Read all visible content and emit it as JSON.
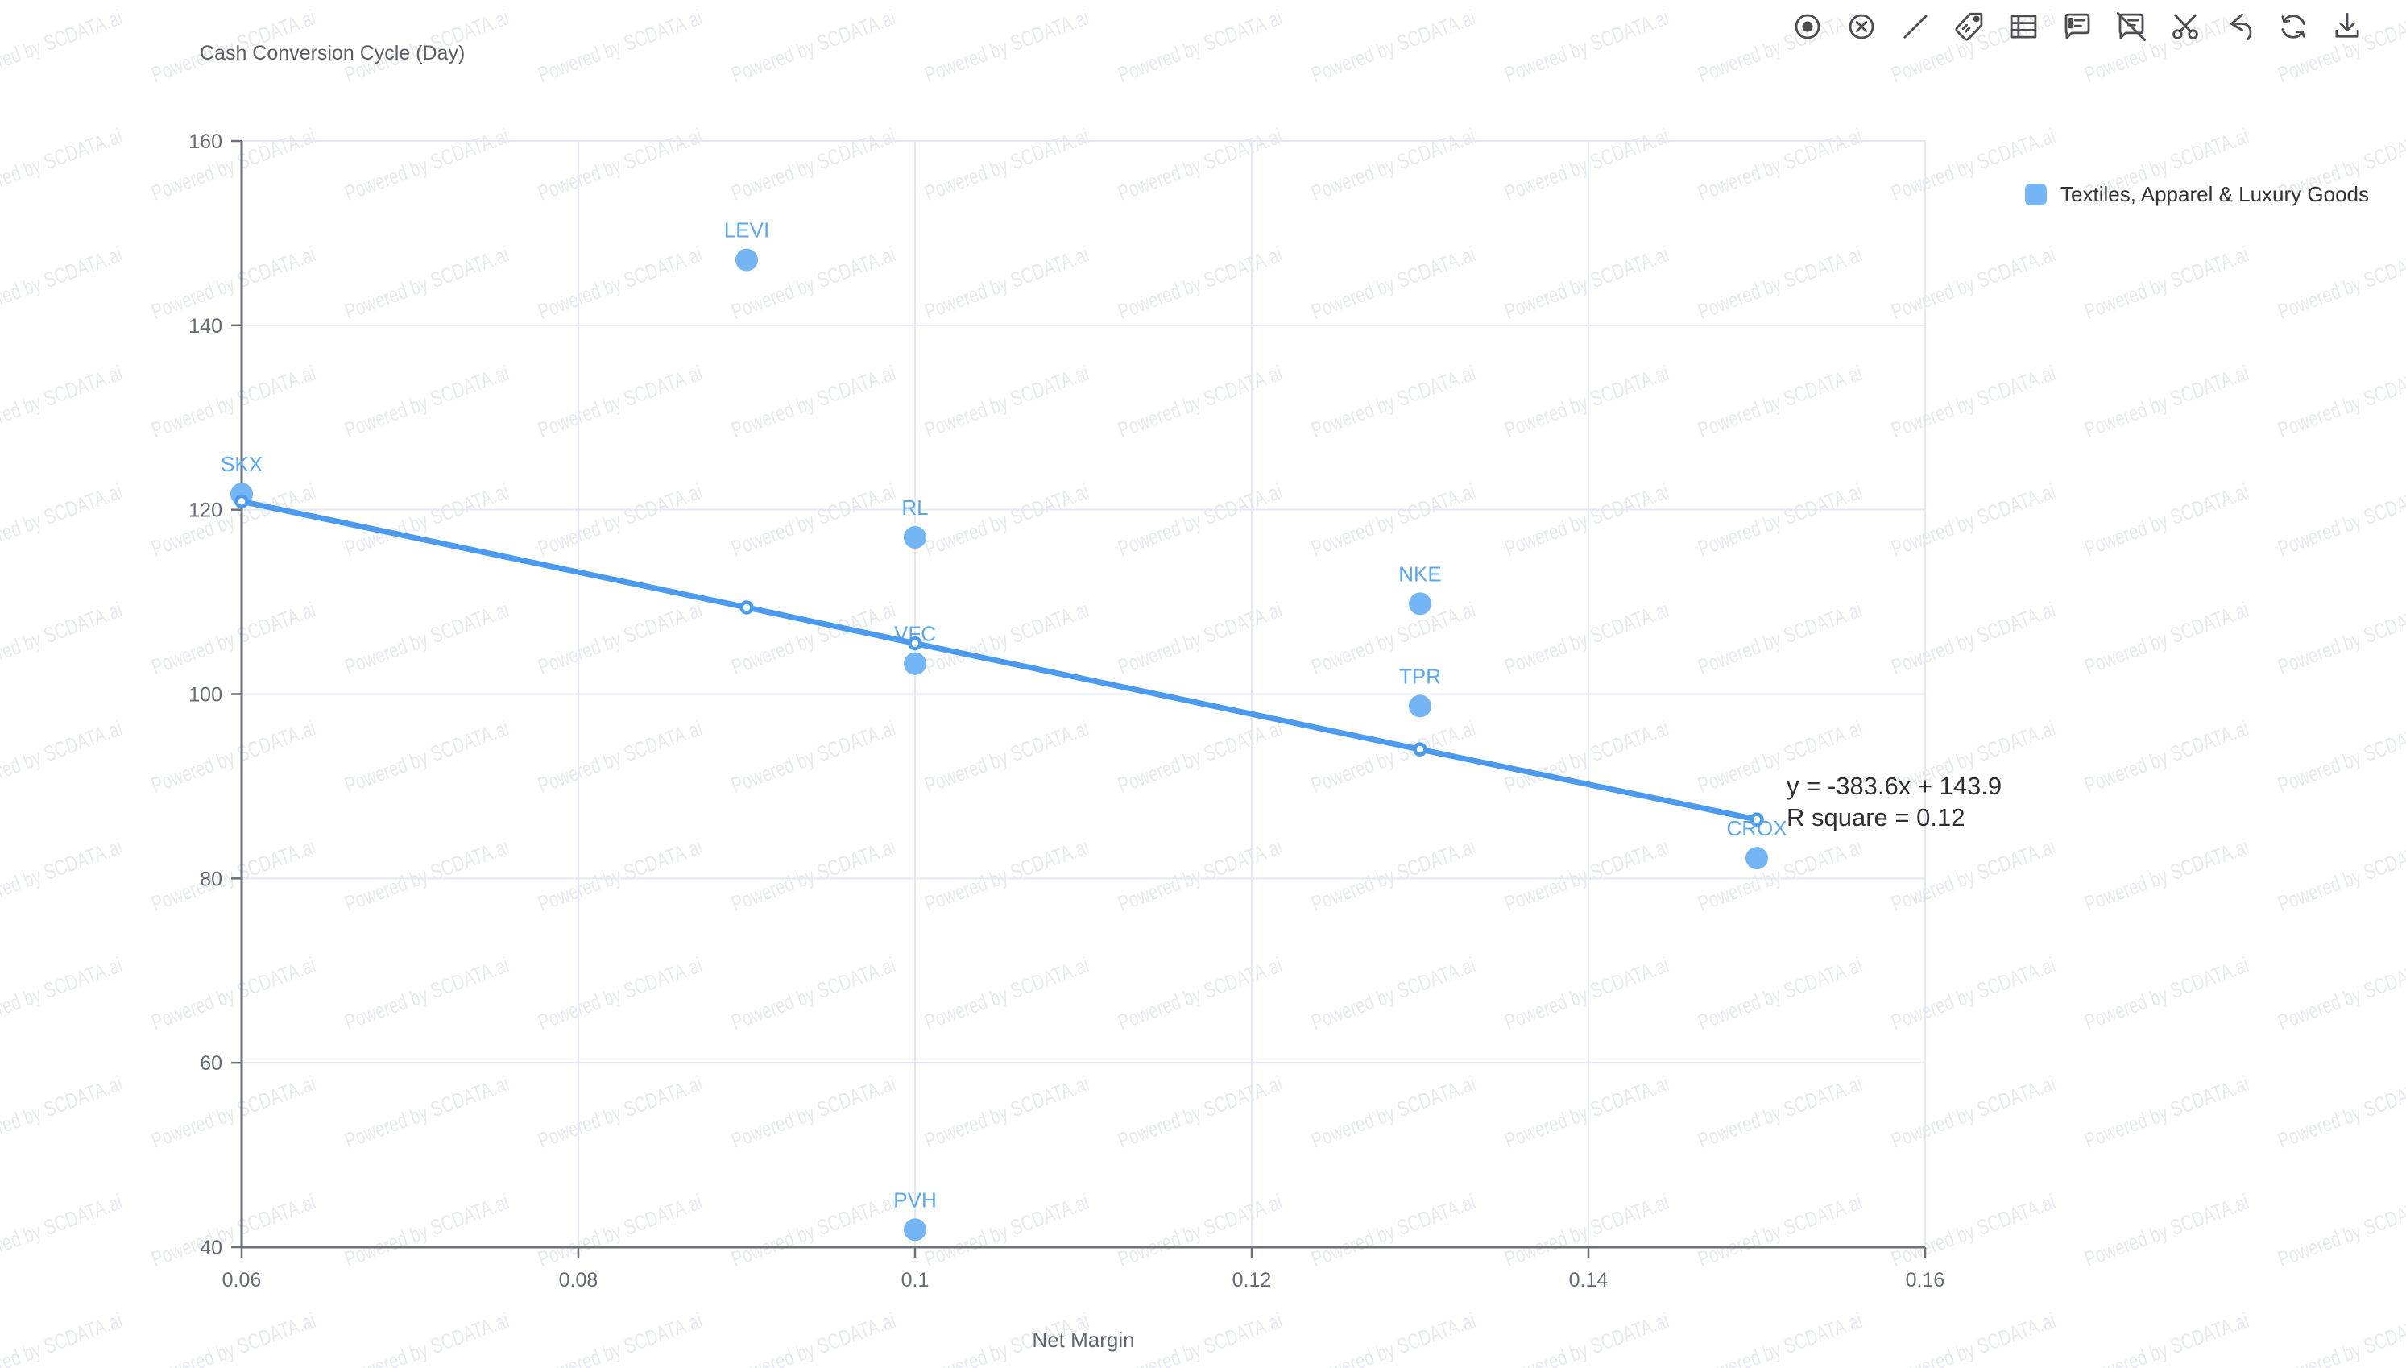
{
  "watermark": {
    "text": "Powered by SCDATA.ai"
  },
  "toolbar": {
    "icons": [
      {
        "name": "dot-circle-icon"
      },
      {
        "name": "circle-x-icon"
      },
      {
        "name": "line-icon"
      },
      {
        "name": "tag-icon"
      },
      {
        "name": "table-icon"
      },
      {
        "name": "annotation-icon"
      },
      {
        "name": "annotation-off-icon"
      },
      {
        "name": "scissors-icon"
      },
      {
        "name": "undo-icon"
      },
      {
        "name": "refresh-icon"
      },
      {
        "name": "download-icon"
      }
    ]
  },
  "legend": {
    "items": [
      {
        "label": "Textiles, Apparel & Luxury Goods",
        "color": "#74b5f6"
      }
    ]
  },
  "chart_data": {
    "type": "scatter",
    "title": "Cash Conversion Cycle (Day)",
    "xlabel": "Net Margin",
    "ylabel": "Cash Conversion Cycle (Day)",
    "xlim": [
      0.06,
      0.16
    ],
    "ylim": [
      40,
      160
    ],
    "x_ticks": [
      0.06,
      0.08,
      0.1,
      0.12,
      0.14,
      0.16
    ],
    "x_tick_labels": [
      "0.06",
      "0.08",
      "0.1",
      "0.12",
      "0.14",
      "0.16"
    ],
    "y_ticks": [
      40,
      60,
      80,
      100,
      120,
      140,
      160
    ],
    "y_tick_labels": [
      "40",
      "60",
      "80",
      "100",
      "120",
      "140",
      "160"
    ],
    "grid": true,
    "legend_position": "top-right",
    "series": [
      {
        "name": "Textiles, Apparel & Luxury Goods",
        "type": "scatter",
        "color": "#74b5f6",
        "label_color": "#58a7f3",
        "points": [
          {
            "label": "SKX",
            "x": 0.06,
            "y": 121.7
          },
          {
            "label": "LEVI",
            "x": 0.09,
            "y": 147.1
          },
          {
            "label": "RL",
            "x": 0.1,
            "y": 117.0
          },
          {
            "label": "VFC",
            "x": 0.1,
            "y": 103.3
          },
          {
            "label": "PVH",
            "x": 0.1,
            "y": 41.9
          },
          {
            "label": "NKE",
            "x": 0.13,
            "y": 109.8
          },
          {
            "label": "TPR",
            "x": 0.13,
            "y": 98.7
          },
          {
            "label": "CROX",
            "x": 0.15,
            "y": 82.2
          }
        ]
      }
    ],
    "trend": {
      "name": "linear-trend",
      "type": "line",
      "color": "#4a9bf0",
      "equation_label": "y = -383.6x + 143.9",
      "r_square_label": "R square = 0.12",
      "slope": -383.6,
      "intercept": 143.9,
      "r_square": 0.12,
      "points": [
        {
          "x": 0.06,
          "y": 120.9
        },
        {
          "x": 0.09,
          "y": 109.4
        },
        {
          "x": 0.1,
          "y": 105.5
        },
        {
          "x": 0.13,
          "y": 94.0
        },
        {
          "x": 0.15,
          "y": 86.4
        }
      ]
    },
    "axis_color": "#6e7079",
    "grid_color": "#e3e8f4",
    "tick_label_color": "#666b75"
  }
}
